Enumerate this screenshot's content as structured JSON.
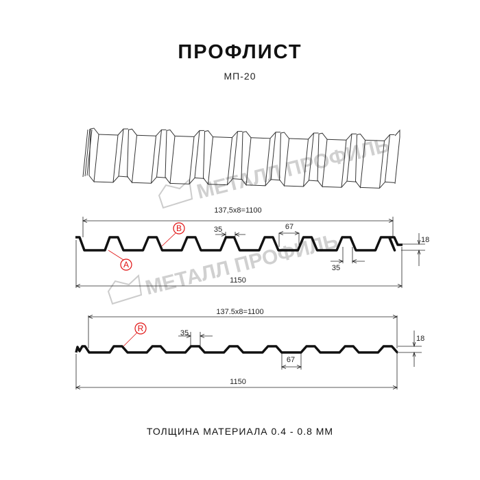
{
  "header": {
    "title": "ПРОФЛИСТ",
    "subtitle": "МП-20"
  },
  "watermark": {
    "text": "МЕТАЛЛ ПРОФИЛЬ"
  },
  "profile_a": {
    "pitch_dim": "137,5x8=1100",
    "total_dim": "1150",
    "ridge_top_dim": "35",
    "trough_dim": "67",
    "bottom_dim": "35",
    "height_dim": "18",
    "marker_a": "A",
    "marker_b": "B"
  },
  "profile_b": {
    "pitch_dim": "137.5x8=1100",
    "total_dim": "1150",
    "ridge_top_dim": "35",
    "trough_dim": "67",
    "height_dim": "18",
    "marker_r": "R"
  },
  "footer": {
    "thickness": "ТОЛЩИНА МАТЕРИАЛА 0.4 - 0.8 ММ"
  },
  "colors": {
    "profile": "#111111",
    "marker": "#e01010",
    "watermark": "#c8c8c8"
  }
}
